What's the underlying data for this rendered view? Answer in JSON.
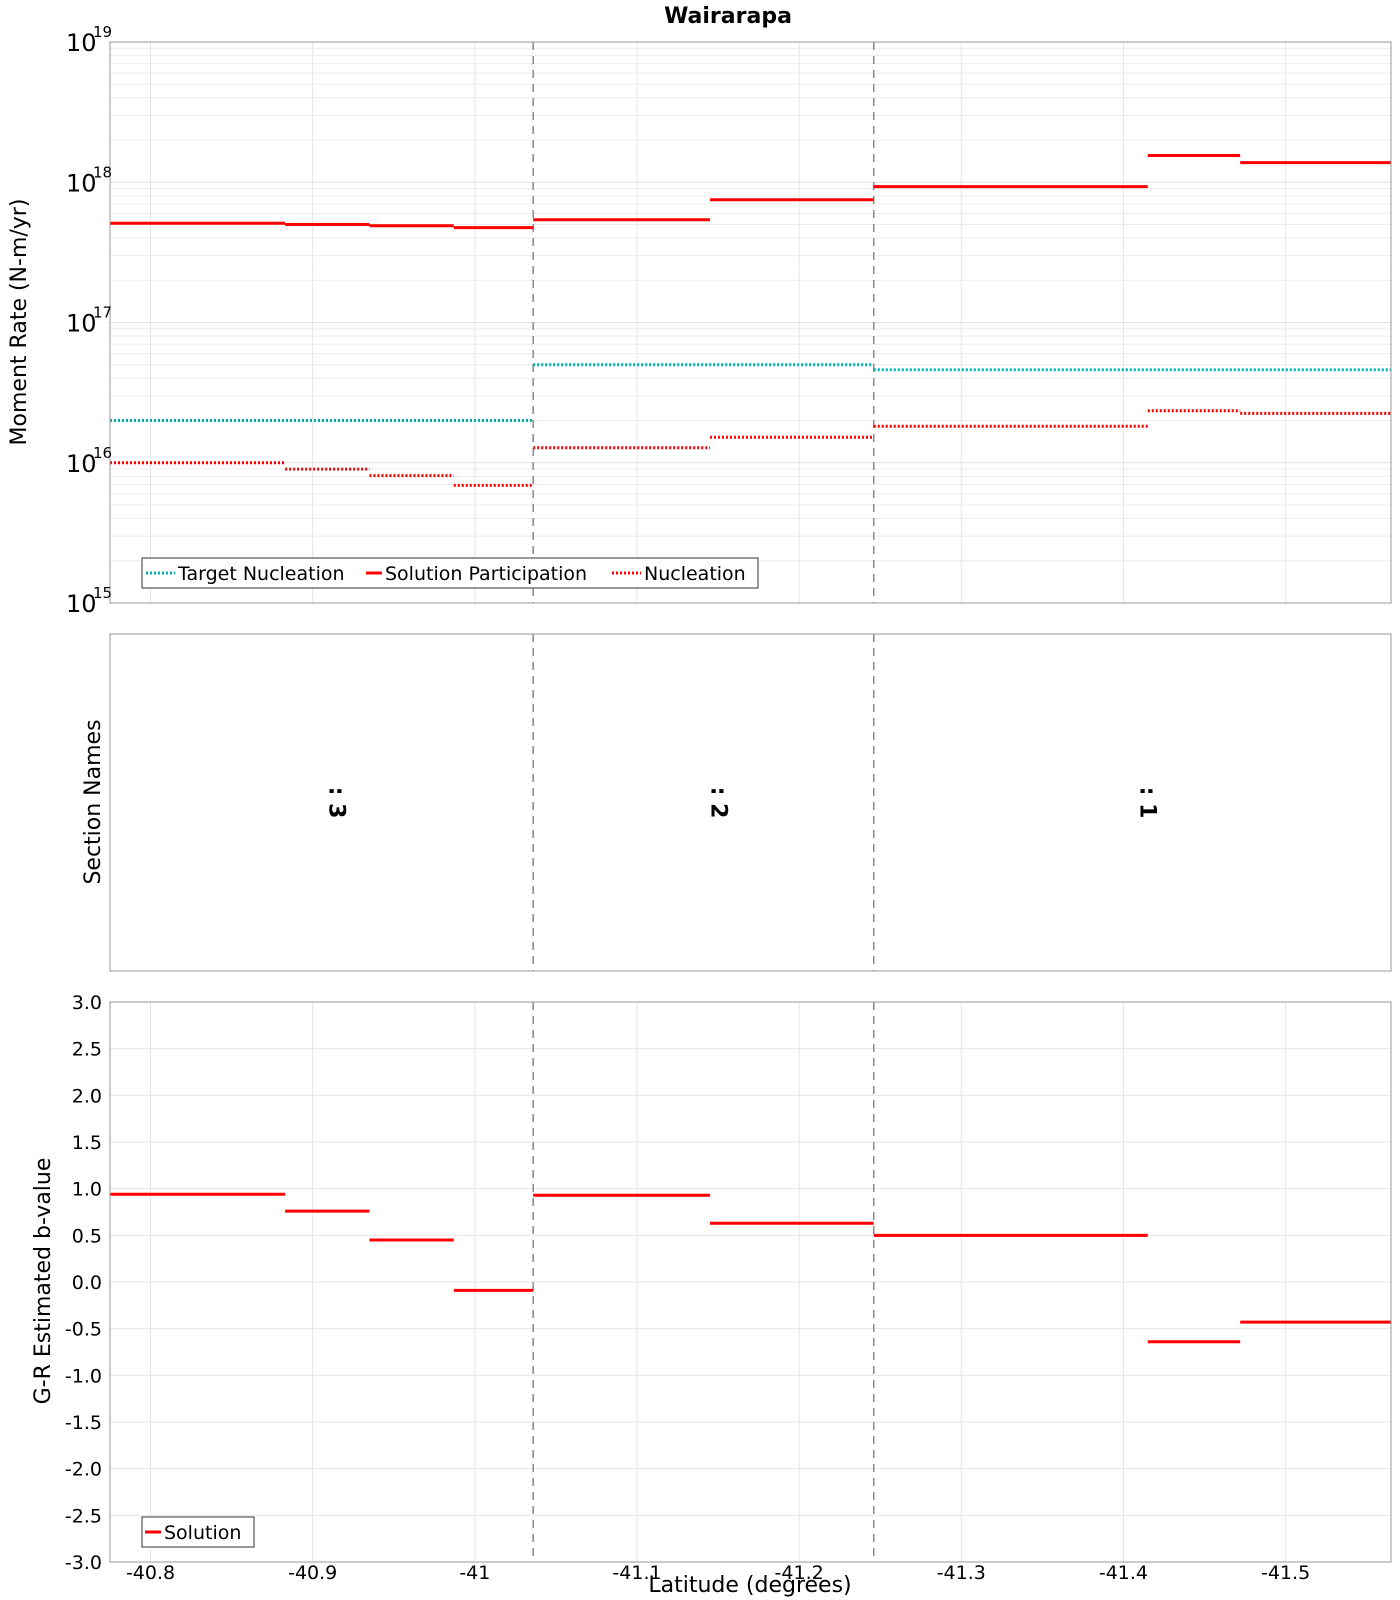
{
  "title": "Wairarapa",
  "x_axis_label": "Latitude (degrees)",
  "chart_data": [
    {
      "type": "line",
      "panel": "moment",
      "ylabel": "Moment Rate (N-m/yr)",
      "yscale": "log",
      "ylim": [
        1000000000000000.0,
        1e+19
      ],
      "xlim": [
        -40.775,
        -41.565
      ],
      "grid": true,
      "legend_position": "bottom-left",
      "ytick_bases": [
        "10",
        "10",
        "10",
        "10",
        "10"
      ],
      "ytick_exponents": [
        "15",
        "16",
        "17",
        "18",
        "19"
      ],
      "legend": [
        "Target Nucleation",
        "Solution Participation",
        "Nucleation"
      ],
      "series": [
        {
          "name": "Target Nucleation",
          "color": "#00b0b0",
          "style": "dotted",
          "segments": [
            {
              "x0": -40.775,
              "x1": -41.036,
              "y": 2e+16
            },
            {
              "x0": -41.036,
              "x1": -41.246,
              "y": 5e+16
            },
            {
              "x0": -41.246,
              "x1": -41.565,
              "y": 4.6e+16
            }
          ]
        },
        {
          "name": "Solution Participation",
          "color": "#ff0000",
          "style": "solid",
          "segments": [
            {
              "x0": -40.775,
              "x1": -40.883,
              "y": 5.1e+17
            },
            {
              "x0": -40.883,
              "x1": -40.935,
              "y": 5e+17
            },
            {
              "x0": -40.935,
              "x1": -40.987,
              "y": 4.9e+17
            },
            {
              "x0": -40.987,
              "x1": -41.036,
              "y": 4.75e+17
            },
            {
              "x0": -41.036,
              "x1": -41.145,
              "y": 5.4e+17
            },
            {
              "x0": -41.145,
              "x1": -41.246,
              "y": 7.5e+17
            },
            {
              "x0": -41.246,
              "x1": -41.415,
              "y": 9.3e+17
            },
            {
              "x0": -41.415,
              "x1": -41.472,
              "y": 1.55e+18
            },
            {
              "x0": -41.472,
              "x1": -41.565,
              "y": 1.38e+18
            }
          ]
        },
        {
          "name": "Nucleation",
          "color": "#ff0000",
          "style": "dotted",
          "segments": [
            {
              "x0": -40.775,
              "x1": -40.883,
              "y": 1e+16
            },
            {
              "x0": -40.883,
              "x1": -40.935,
              "y": 9000000000000000.0
            },
            {
              "x0": -40.935,
              "x1": -40.987,
              "y": 8100000000000000.0
            },
            {
              "x0": -40.987,
              "x1": -41.036,
              "y": 6900000000000000.0
            },
            {
              "x0": -41.036,
              "x1": -41.145,
              "y": 1.28e+16
            },
            {
              "x0": -41.145,
              "x1": -41.246,
              "y": 1.52e+16
            },
            {
              "x0": -41.246,
              "x1": -41.415,
              "y": 1.82e+16
            },
            {
              "x0": -41.415,
              "x1": -41.472,
              "y": 2.35e+16
            },
            {
              "x0": -41.472,
              "x1": -41.565,
              "y": 2.25e+16
            }
          ]
        }
      ]
    },
    {
      "type": "table",
      "panel": "sections",
      "ylabel": "Section Names",
      "xlim": [
        -40.775,
        -41.565
      ],
      "sections": [
        {
          "label": ": 3",
          "x0": -40.775,
          "x1": -41.036
        },
        {
          "label": ": 2",
          "x0": -41.036,
          "x1": -41.246
        },
        {
          "label": ": 1",
          "x0": -41.246,
          "x1": -41.565
        }
      ]
    },
    {
      "type": "line",
      "panel": "bvalue",
      "ylabel": "G-R Estimated b-value",
      "ylim": [
        -3.0,
        3.0
      ],
      "xlim": [
        -40.775,
        -41.565
      ],
      "grid": true,
      "legend_position": "bottom-left",
      "yticks": [
        "3.0",
        "2.5",
        "2.0",
        "1.5",
        "1.0",
        "0.5",
        "0.0",
        "-0.5",
        "-1.0",
        "-1.5",
        "-2.0",
        "-2.5",
        "-3.0"
      ],
      "xticks": [
        "-40.8",
        "-40.9",
        "-41",
        "-41.1",
        "-41.2",
        "-41.3",
        "-41.4",
        "-41.5"
      ],
      "legend": [
        "Solution"
      ],
      "series": [
        {
          "name": "Solution",
          "color": "#ff0000",
          "style": "solid",
          "segments": [
            {
              "x0": -40.775,
              "x1": -40.883,
              "y": 0.94
            },
            {
              "x0": -40.883,
              "x1": -40.935,
              "y": 0.76
            },
            {
              "x0": -40.935,
              "x1": -40.987,
              "y": 0.45
            },
            {
              "x0": -40.987,
              "x1": -41.036,
              "y": -0.09
            },
            {
              "x0": -41.036,
              "x1": -41.145,
              "y": 0.93
            },
            {
              "x0": -41.145,
              "x1": -41.246,
              "y": 0.63
            },
            {
              "x0": -41.246,
              "x1": -41.415,
              "y": 0.5
            },
            {
              "x0": -41.415,
              "x1": -41.472,
              "y": -0.64
            },
            {
              "x0": -41.472,
              "x1": -41.565,
              "y": -0.43
            }
          ]
        }
      ]
    }
  ],
  "section_boundaries": [
    -41.036,
    -41.246
  ]
}
